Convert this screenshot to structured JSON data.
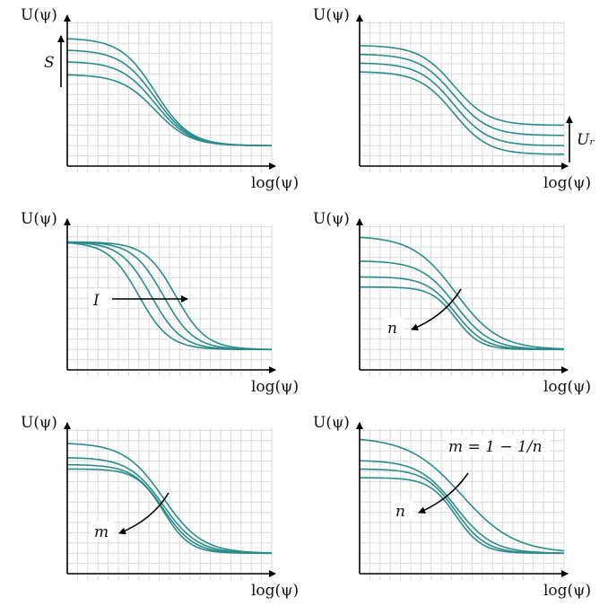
{
  "colors": {
    "curve": "#2a8c8a",
    "axis": "#000000",
    "grid": "#d9d9d9"
  },
  "panels": [
    {
      "id": "S",
      "ylabel": "U(ψ)",
      "xlabel": "log(ψ)",
      "annotation": "S",
      "curves": [
        {
          "high": 0.88,
          "low": 0.14,
          "mid": 0.43,
          "width": 0.085
        },
        {
          "high": 0.8,
          "low": 0.14,
          "mid": 0.43,
          "width": 0.085
        },
        {
          "high": 0.72,
          "low": 0.14,
          "mid": 0.43,
          "width": 0.085
        },
        {
          "high": 0.63,
          "low": 0.14,
          "mid": 0.43,
          "width": 0.085
        }
      ]
    },
    {
      "id": "Ur",
      "ylabel": "U(ψ)",
      "xlabel": "log(ψ)",
      "annotation": "Uᵣ",
      "curves": [
        {
          "high": 0.83,
          "low": 0.28,
          "mid": 0.46,
          "width": 0.085
        },
        {
          "high": 0.77,
          "low": 0.21,
          "mid": 0.46,
          "width": 0.085
        },
        {
          "high": 0.71,
          "low": 0.14,
          "mid": 0.46,
          "width": 0.085
        },
        {
          "high": 0.65,
          "low": 0.08,
          "mid": 0.46,
          "width": 0.085
        }
      ]
    },
    {
      "id": "I",
      "ylabel": "U(ψ)",
      "xlabel": "log(ψ)",
      "annotation": "I",
      "curves": [
        {
          "high": 0.88,
          "low": 0.14,
          "mid": 0.35,
          "width": 0.075
        },
        {
          "high": 0.88,
          "low": 0.14,
          "mid": 0.41,
          "width": 0.075
        },
        {
          "high": 0.88,
          "low": 0.14,
          "mid": 0.47,
          "width": 0.075
        },
        {
          "high": 0.88,
          "low": 0.14,
          "mid": 0.53,
          "width": 0.075
        }
      ]
    },
    {
      "id": "n",
      "ylabel": "U(ψ)",
      "xlabel": "log(ψ)",
      "annotation": "n",
      "curves": [
        {
          "high": 0.92,
          "low": 0.14,
          "mid": 0.47,
          "width": 0.105
        },
        {
          "high": 0.75,
          "low": 0.14,
          "mid": 0.47,
          "width": 0.085
        },
        {
          "high": 0.64,
          "low": 0.14,
          "mid": 0.47,
          "width": 0.072
        },
        {
          "high": 0.57,
          "low": 0.14,
          "mid": 0.47,
          "width": 0.06
        }
      ]
    },
    {
      "id": "m",
      "ylabel": "U(ψ)",
      "xlabel": "log(ψ)",
      "annotation": "m",
      "curves": [
        {
          "high": 0.9,
          "low": 0.14,
          "mid": 0.47,
          "width": 0.095
        },
        {
          "high": 0.8,
          "low": 0.14,
          "mid": 0.47,
          "width": 0.085
        },
        {
          "high": 0.75,
          "low": 0.14,
          "mid": 0.47,
          "width": 0.075
        },
        {
          "high": 0.72,
          "low": 0.14,
          "mid": 0.47,
          "width": 0.065
        }
      ]
    },
    {
      "id": "mn",
      "ylabel": "U(ψ)",
      "xlabel": "log(ψ)",
      "annotation": "n",
      "formula": "m = 1 − 1/n",
      "curves": [
        {
          "high": 0.94,
          "low": 0.14,
          "mid": 0.5,
          "width": 0.13
        },
        {
          "high": 0.78,
          "low": 0.14,
          "mid": 0.47,
          "width": 0.09
        },
        {
          "high": 0.72,
          "low": 0.14,
          "mid": 0.47,
          "width": 0.075
        },
        {
          "high": 0.66,
          "low": 0.14,
          "mid": 0.47,
          "width": 0.065
        }
      ]
    }
  ]
}
